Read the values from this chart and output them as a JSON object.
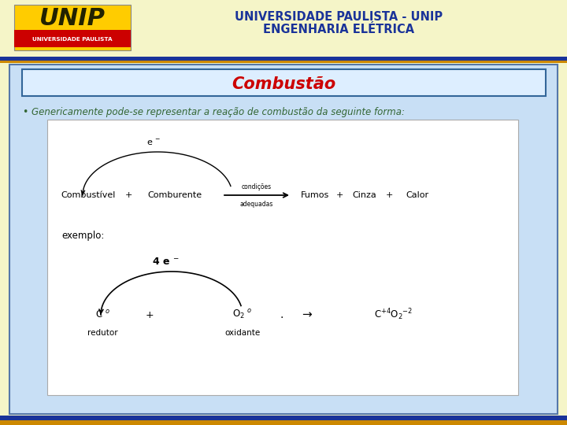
{
  "bg_color": "#f5f5c8",
  "header_text1": "UNIVERSIDADE PAULISTA - UNIP",
  "header_text2": "ENGENHARIA ELÉTRICA",
  "header_color": "#1a3399",
  "title": "Combustão",
  "title_color": "#cc0000",
  "slide_bg": "#c8dff5",
  "slide_border": "#5577aa",
  "white_box_bg": "#ffffff",
  "white_box_border": "#aaaaaa",
  "bullet_text": "Genericamente pode-se representar a reação de combustão da seguinte forma:",
  "bullet_color": "#336633",
  "bottom_bar_color": "#003399",
  "bottom_bar2_color": "#cc8800",
  "logo_yellow": "#ffcc00",
  "logo_red": "#cc0000"
}
